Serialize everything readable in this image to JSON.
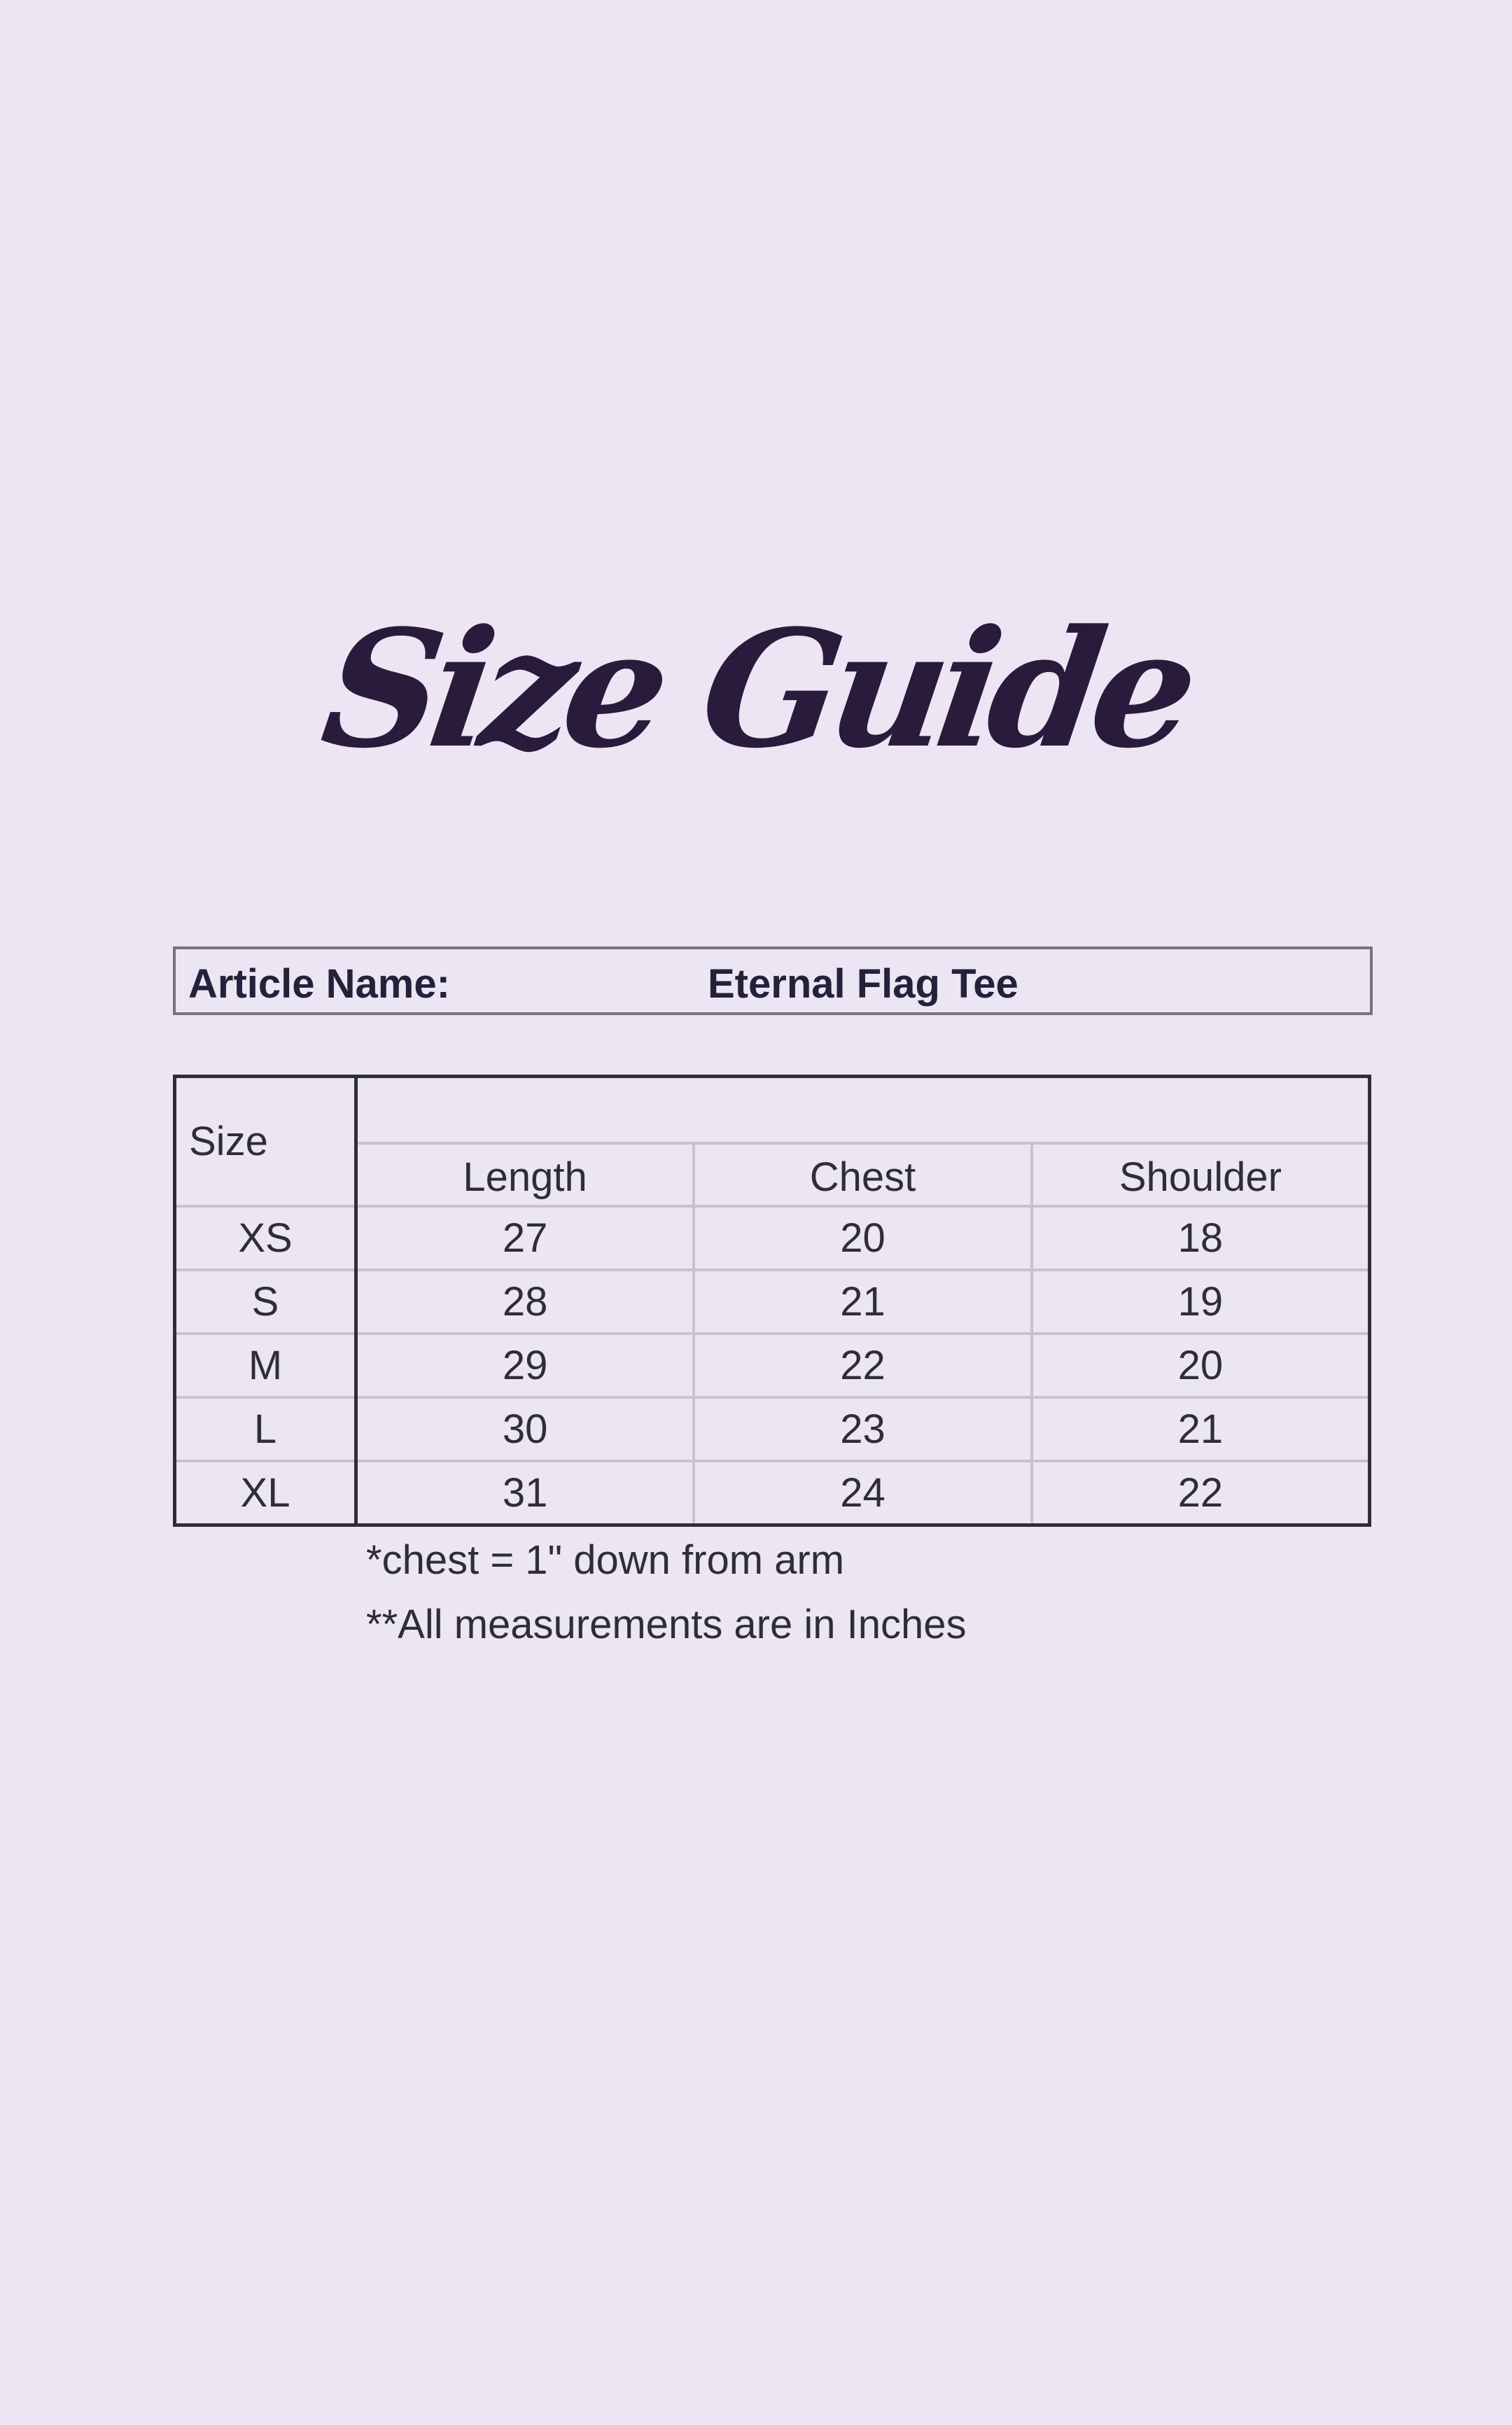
{
  "title": "Size Guide",
  "article": {
    "label": "Article Name:",
    "value": "Eternal Flag Tee"
  },
  "table": {
    "size_header": "Size",
    "columns": [
      "Length",
      "Chest",
      "Shoulder"
    ],
    "rows": [
      {
        "size": "XS",
        "values": [
          "27",
          "20",
          "18"
        ]
      },
      {
        "size": "S",
        "values": [
          "28",
          "21",
          "19"
        ]
      },
      {
        "size": "M",
        "values": [
          "29",
          "22",
          "20"
        ]
      },
      {
        "size": "L",
        "values": [
          "30",
          "23",
          "21"
        ]
      },
      {
        "size": "XL",
        "values": [
          "31",
          "24",
          "22"
        ]
      }
    ]
  },
  "notes": [
    "*chest = 1\" down from arm",
    "**All measurements are in Inches"
  ],
  "colors": {
    "background": "#ece5f3",
    "title": "#2a1a3c",
    "text": "#2b2a3a"
  }
}
